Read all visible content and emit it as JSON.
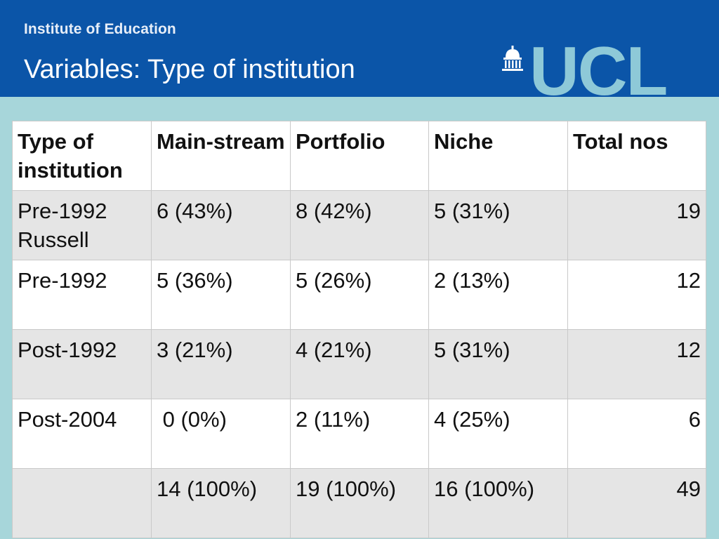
{
  "header": {
    "institute": "Institute of Education",
    "title": "Variables: Type of institution",
    "logo_text": "UCL",
    "logo_icon": "building-dome-icon",
    "background_color": "#0b55a8"
  },
  "table": {
    "headers": [
      "Type of institution",
      "Main-stream",
      "Portfolio",
      "Niche",
      "Total nos"
    ],
    "rows": [
      [
        "Pre-1992 Russell",
        "6 (43%)",
        "8 (42%)",
        "5 (31%)",
        "19"
      ],
      [
        "Pre-1992",
        "5 (36%)",
        "5 (26%)",
        "2 (13%)",
        "12"
      ],
      [
        "Post-1992",
        "3 (21%)",
        "4 (21%)",
        "5 (31%)",
        "12"
      ],
      [
        "Post-2004",
        " 0 (0%)",
        "2 (11%)",
        "4 (25%)",
        "6"
      ],
      [
        "",
        "14 (100%)",
        "19 (100%)",
        "16 (100%)",
        "49"
      ]
    ]
  },
  "colors": {
    "page_background": "#a7d6da",
    "row_shade": "#e5e5e5",
    "logo": "#8ec9d8"
  }
}
